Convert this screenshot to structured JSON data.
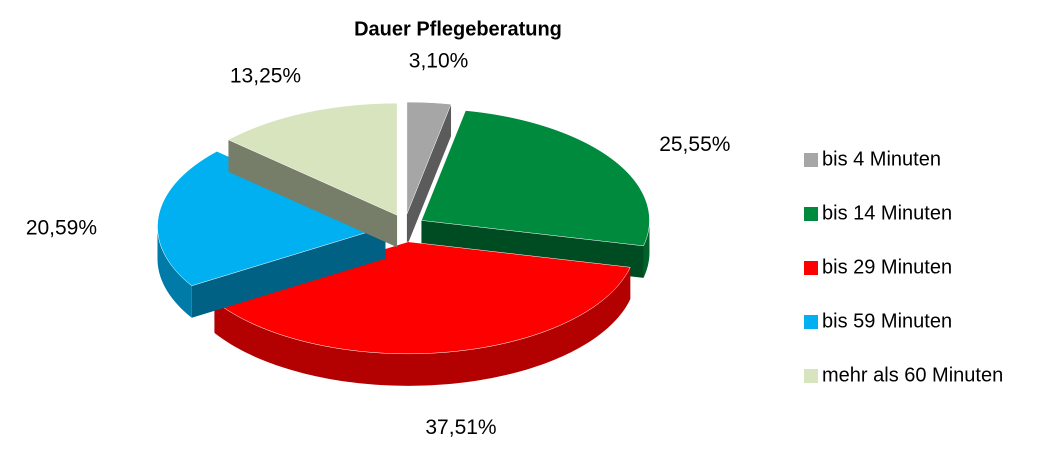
{
  "chart_data": {
    "type": "pie",
    "title": "Dauer Pflegeberatung",
    "categories": [
      "bis 4 Minuten",
      "bis 14 Minuten",
      "bis 29 Minuten",
      "bis 59 Minuten",
      "mehr als 60 Minuten"
    ],
    "values": [
      3.1,
      25.55,
      37.51,
      20.59,
      13.25
    ],
    "value_labels": [
      "3,10%",
      "25,55%",
      "37,51%",
      "20,59%",
      "13,25%"
    ],
    "colors": [
      "#a6a6a6",
      "#008a3e",
      "#ff0000",
      "#00b0f0",
      "#d7e4bd"
    ],
    "legend": "right"
  }
}
